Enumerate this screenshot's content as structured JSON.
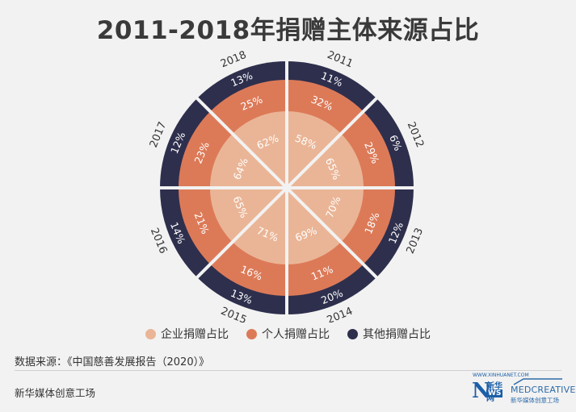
{
  "title": "2011-2018年捐赠主体来源占比",
  "legend": [
    {
      "label": "企业捐赠占比",
      "color": "#eab596"
    },
    {
      "label": "个人捐赠占比",
      "color": "#dc7a58"
    },
    {
      "label": "其他捐赠占比",
      "color": "#2e2f4d"
    }
  ],
  "source": "数据来源：《中国慈善发展报告（2020）》",
  "footer": "新华媒体创意工场",
  "logos": {
    "news_top": "WWW.XINHUANET.COM",
    "news_n": "N",
    "news_cn": "新华网",
    "news_ws": "WS",
    "creative_word": "MEDCREATIVE",
    "creative_sub": "新华媒体创意工场"
  },
  "chart_data": {
    "type": "pie",
    "categories": [
      "2011",
      "2012",
      "2013",
      "2014",
      "2015",
      "2016",
      "2017",
      "2018"
    ],
    "series": [
      {
        "name": "企业捐赠占比",
        "values": [
          58,
          65,
          70,
          69,
          71,
          65,
          64,
          62
        ]
      },
      {
        "name": "个人捐赠占比",
        "values": [
          32,
          29,
          18,
          11,
          16,
          21,
          23,
          25
        ]
      },
      {
        "name": "其他捐赠占比",
        "values": [
          11,
          6,
          12,
          20,
          13,
          14,
          12,
          13
        ]
      }
    ],
    "labels": {
      "corp": [
        "58%",
        "65%",
        "70%",
        "69%",
        "71%",
        "65%",
        "64%",
        "62%"
      ],
      "indiv": [
        "32%",
        "29%",
        "18%",
        "11%",
        "16%",
        "21%",
        "23%",
        "25%"
      ],
      "other": [
        "11%",
        "6%",
        "12%",
        "20%",
        "13%",
        "14%",
        "12%",
        "13%"
      ]
    },
    "colors": {
      "corp": "#eab596",
      "indiv": "#dc7a58",
      "other": "#2e2f4d",
      "background": "#f2f2f2"
    }
  }
}
